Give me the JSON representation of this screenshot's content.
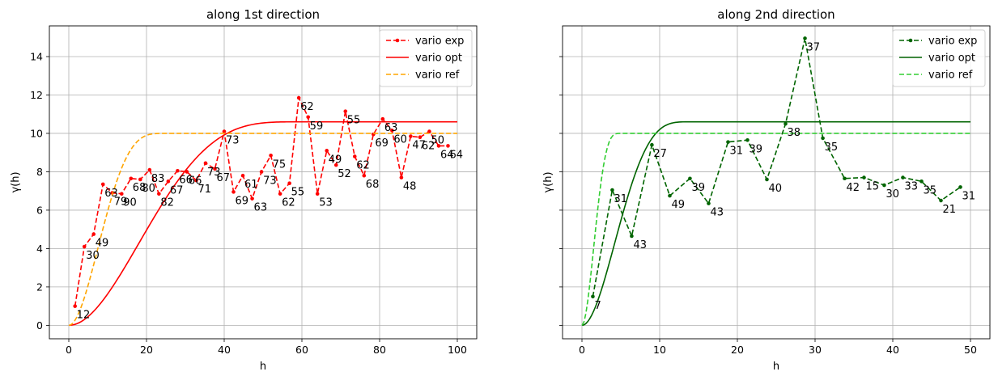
{
  "chart_data": [
    {
      "type": "line",
      "title": "along 1st direction",
      "xlabel": "h",
      "ylabel": "γ(h)",
      "xlim": [
        -5,
        105
      ],
      "ylim": [
        -0.7,
        15.6
      ],
      "xticks": [
        0,
        20,
        40,
        60,
        80,
        100
      ],
      "yticks": [
        0,
        2,
        4,
        6,
        8,
        10,
        12,
        14
      ],
      "grid": true,
      "legend": "top-right",
      "series": [
        {
          "name": "vario exp",
          "style": "dashed-dots",
          "color": "#ff0000",
          "x": [
            1.6,
            4.0,
            6.4,
            8.8,
            11.2,
            13.6,
            16.0,
            18.4,
            20.8,
            23.2,
            25.6,
            28.0,
            30.4,
            32.8,
            35.2,
            37.6,
            40.0,
            42.4,
            44.8,
            47.2,
            49.6,
            52.0,
            54.4,
            56.8,
            59.2,
            61.6,
            64.0,
            66.4,
            68.8,
            71.2,
            73.6,
            76.0,
            78.4,
            80.8,
            83.2,
            85.6,
            88.0,
            90.4,
            92.8,
            95.2,
            97.6
          ],
          "y": [
            1.0,
            4.1,
            4.75,
            7.35,
            6.9,
            6.85,
            7.65,
            7.6,
            8.1,
            6.85,
            7.5,
            8.05,
            8.0,
            7.55,
            8.45,
            8.15,
            10.1,
            6.95,
            7.8,
            6.6,
            8.0,
            8.85,
            6.85,
            7.4,
            11.85,
            10.85,
            6.85,
            9.1,
            8.35,
            11.15,
            8.8,
            7.8,
            9.95,
            10.75,
            10.15,
            7.7,
            9.85,
            9.8,
            10.1,
            9.35,
            9.35
          ],
          "labels": [
            "12",
            "30",
            "49",
            "63",
            "79",
            "90",
            "68",
            "80",
            "83",
            "82",
            "67",
            "66",
            "66",
            "71",
            "73",
            "67",
            "73",
            "69",
            "61",
            "63",
            "73",
            "75",
            "62",
            "55",
            "62",
            "59",
            "53",
            "49",
            "52",
            "55",
            "62",
            "68",
            "69",
            "63",
            "60",
            "48",
            "47",
            "62",
            "50",
            "64",
            "64"
          ]
        },
        {
          "name": "vario opt",
          "style": "solid",
          "color": "#ff0000",
          "model": "cubic",
          "sill": 10.6,
          "range": 60,
          "xmax": 100
        },
        {
          "name": "vario ref",
          "style": "dashed",
          "color": "#ffa500",
          "model": "cubic",
          "sill": 10.0,
          "range": 25,
          "xmax": 100
        }
      ]
    },
    {
      "type": "line",
      "title": "along 2nd direction",
      "xlabel": "h",
      "ylabel": "γ(h)",
      "xlim": [
        -2.5,
        52.5
      ],
      "ylim": [
        -0.7,
        15.6
      ],
      "xticks": [
        0,
        10,
        20,
        30,
        40,
        50
      ],
      "yticks": [
        0,
        2,
        4,
        6,
        8,
        10,
        12,
        14
      ],
      "grid": true,
      "legend": "top-right",
      "series": [
        {
          "name": "vario exp",
          "style": "dashed-dots",
          "color": "#006400",
          "x": [
            1.4,
            3.9,
            6.4,
            9.0,
            11.3,
            13.9,
            16.3,
            18.8,
            21.3,
            23.8,
            26.2,
            28.7,
            31.0,
            33.8,
            36.3,
            38.9,
            41.3,
            43.7,
            46.2,
            48.7
          ],
          "y": [
            1.5,
            7.05,
            4.65,
            9.4,
            6.75,
            7.65,
            6.35,
            9.55,
            9.65,
            7.6,
            10.5,
            14.95,
            9.75,
            7.65,
            7.7,
            7.3,
            7.7,
            7.5,
            6.5,
            7.2
          ],
          "labels": [
            "7",
            "31",
            "43",
            "27",
            "49",
            "39",
            "43",
            "31",
            "39",
            "40",
            "38",
            "37",
            "35",
            "42",
            "15",
            "30",
            "33",
            "35",
            "21",
            "31"
          ]
        },
        {
          "name": "vario opt",
          "style": "solid",
          "color": "#006400",
          "model": "cubic",
          "sill": 10.6,
          "range": 14,
          "xmax": 50
        },
        {
          "name": "vario ref",
          "style": "dashed",
          "color": "#32cd32",
          "model": "cubic",
          "sill": 10.0,
          "range": 5,
          "xmax": 50
        }
      ]
    }
  ]
}
